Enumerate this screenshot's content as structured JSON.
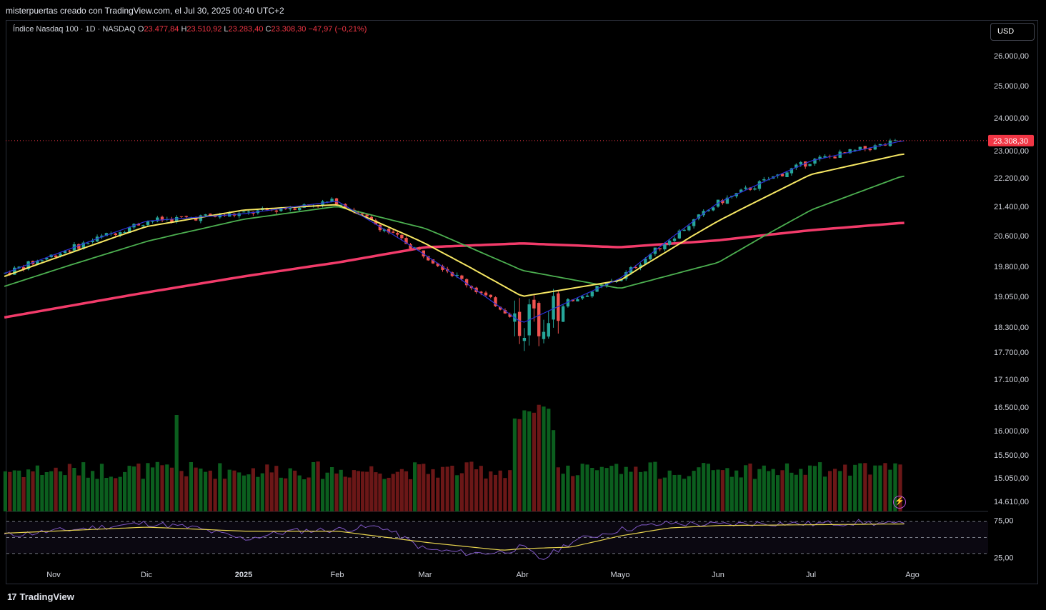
{
  "header": {
    "credit": "misterpuertas creado con TradingView.com, el Jul 30, 2025 00:40 UTC+2"
  },
  "legend": {
    "symbol": "Índice Nasdaq 100 · 1D · NASDAQ",
    "o_label": "O",
    "o_value": "23.477,84",
    "h_label": "H",
    "h_value": "23.510,92",
    "l_label": "L",
    "l_value": "23.283,40",
    "c_label": "C",
    "c_value": "23.308,30",
    "change": "−47,97 (−0,21%)"
  },
  "currency": "USD",
  "last_price_label": "23.308,30",
  "brand": "TradingView",
  "icons": {
    "logo": "tradingview-logo-icon",
    "flash": "lightning-icon"
  },
  "colors": {
    "up": "#26a69a",
    "down": "#ef5350",
    "vol_up": "#0b5e1e",
    "vol_down": "#6b1717",
    "ma_fast": "#2b2fd6",
    "ma_mid": "#f5e663",
    "ma_slow": "#4caf50",
    "ma_long": "#f23b6a",
    "rsi": "#7e57c2",
    "rsi_ma": "#e6d34e",
    "last_price": "#f23645"
  },
  "chart_data": {
    "type": "candlestick",
    "instrument": "Índice Nasdaq 100",
    "interval": "1D",
    "exchange": "NASDAQ",
    "price_axis_ticks": [
      "26.000,00",
      "25.000,00",
      "24.000,00",
      "23.000,00",
      "22.200,00",
      "21.400,00",
      "20.600,00",
      "19.800,00",
      "19.050,00",
      "18.300,00",
      "17.700,00",
      "17.100,00",
      "16.500,00",
      "16.000,00",
      "15.500,00",
      "15.050,00",
      "14.610,00"
    ],
    "price_axis_values": [
      26000,
      25000,
      24000,
      23000,
      22200,
      21400,
      20600,
      19800,
      19050,
      18300,
      17700,
      17100,
      16500,
      16000,
      15500,
      15050,
      14610
    ],
    "x_axis_labels": [
      "Nov",
      "Dic",
      "2025",
      "Feb",
      "Mar",
      "Abr",
      "Mayo",
      "Jun",
      "Jul",
      "Ago"
    ],
    "x_axis_month_index": [
      0,
      1,
      2,
      3,
      4,
      5,
      6,
      7,
      8,
      9
    ],
    "month_start": [
      "2024-11",
      "2024-12",
      "2025-01",
      "2025-02",
      "2025-03",
      "2025-04",
      "2025-05",
      "2025-06",
      "2025-07",
      "2025-08"
    ],
    "last_close": 23308.3,
    "moving_averages_approx": [
      {
        "color_key": "ma_fast",
        "samples": [
          [
            0,
            20100
          ],
          [
            1,
            21000
          ],
          [
            2,
            21200
          ],
          [
            3,
            21550
          ],
          [
            4,
            20100
          ],
          [
            5,
            18400
          ],
          [
            6,
            19500
          ],
          [
            7,
            21500
          ],
          [
            8,
            22700
          ],
          [
            8.9,
            23300
          ]
        ]
      },
      {
        "color_key": "ma_mid",
        "samples": [
          [
            0,
            20000
          ],
          [
            1,
            20850
          ],
          [
            2,
            21300
          ],
          [
            3,
            21450
          ],
          [
            4,
            20400
          ],
          [
            5,
            19050
          ],
          [
            6,
            19450
          ],
          [
            7,
            21000
          ],
          [
            8,
            22300
          ],
          [
            8.9,
            22900
          ]
        ]
      },
      {
        "color_key": "ma_slow",
        "samples": [
          [
            0,
            19700
          ],
          [
            1,
            20450
          ],
          [
            2,
            21050
          ],
          [
            3,
            21400
          ],
          [
            4,
            20800
          ],
          [
            5,
            19700
          ],
          [
            6,
            19250
          ],
          [
            7,
            19900
          ],
          [
            8,
            21300
          ],
          [
            8.9,
            22250
          ]
        ]
      },
      {
        "color_key": "ma_long",
        "samples": [
          [
            0,
            18750
          ],
          [
            1,
            19150
          ],
          [
            2,
            19550
          ],
          [
            3,
            19900
          ],
          [
            4,
            20300
          ],
          [
            5,
            20400
          ],
          [
            6,
            20300
          ],
          [
            7,
            20480
          ],
          [
            8,
            20750
          ],
          [
            8.9,
            20950
          ]
        ]
      }
    ],
    "rsi_axis_ticks": [
      "75,00",
      "25,00"
    ],
    "rsi_axis_values": [
      75,
      25
    ],
    "rsi_levels": [
      70,
      50,
      30
    ],
    "rsi_approx": [
      [
        0,
        58
      ],
      [
        0.5,
        63
      ],
      [
        1,
        68
      ],
      [
        1.5,
        62
      ],
      [
        2,
        48
      ],
      [
        2.5,
        58
      ],
      [
        3,
        60
      ],
      [
        3.5,
        64
      ],
      [
        4,
        35
      ],
      [
        4.5,
        30
      ],
      [
        4.8,
        32
      ],
      [
        5,
        38
      ],
      [
        5.2,
        22
      ],
      [
        5.5,
        45
      ],
      [
        6,
        60
      ],
      [
        6.5,
        68
      ],
      [
        7,
        66
      ],
      [
        7.5,
        68
      ],
      [
        8,
        67
      ],
      [
        8.5,
        69
      ],
      [
        8.9,
        66
      ]
    ],
    "rsi_ma_approx": [
      [
        0,
        58
      ],
      [
        1,
        63
      ],
      [
        2,
        58
      ],
      [
        3,
        58
      ],
      [
        4,
        44
      ],
      [
        4.8,
        34
      ],
      [
        5,
        36
      ],
      [
        5.5,
        38
      ],
      [
        6,
        52
      ],
      [
        6.5,
        62
      ],
      [
        7,
        65
      ],
      [
        8,
        66
      ],
      [
        8.9,
        67
      ]
    ]
  }
}
